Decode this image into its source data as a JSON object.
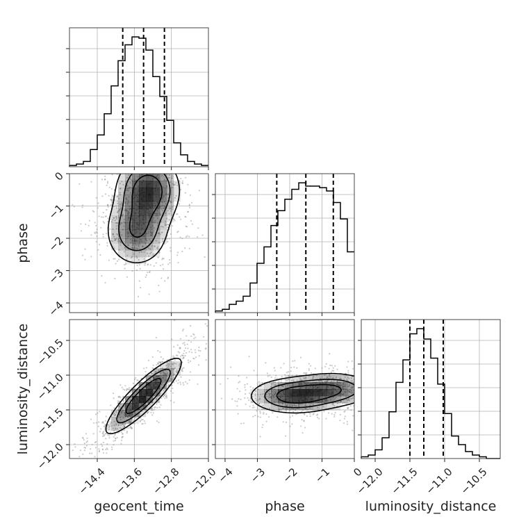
{
  "chart_data": {
    "type": "corner",
    "params": [
      "geocent_time",
      "phase",
      "luminosity_distance"
    ],
    "axis_labels": {
      "geocent_time": "geocent_time",
      "phase": "phase",
      "luminosity_distance": "luminosity_distance"
    },
    "ranges": {
      "geocent_time": [
        -15.0,
        -12.0
      ],
      "phase": [
        -4.3,
        0.0
      ],
      "luminosity_distance": [
        -12.2,
        -10.2
      ]
    },
    "ticks": {
      "geocent_time": {
        "values": [
          -14.4,
          -13.6,
          -12.8,
          -12.0
        ],
        "labels": [
          "−14.4",
          "−13.6",
          "−12.8",
          "−12.0"
        ]
      },
      "phase": {
        "values": [
          -4,
          -3,
          -2,
          -1,
          0
        ],
        "labels": [
          "−4",
          "−3",
          "−2",
          "−1",
          "0"
        ]
      },
      "luminosity_distance": {
        "values": [
          -12.0,
          -11.5,
          -11.0,
          -10.5
        ],
        "labels": [
          "−12.0",
          "−11.5",
          "−11.0",
          "−10.5"
        ]
      }
    },
    "quantiles": {
      "geocent_time": [
        -13.85,
        -13.4,
        -12.95
      ],
      "phase": [
        -2.4,
        -1.5,
        -0.65
      ],
      "luminosity_distance": [
        -11.5,
        -11.3,
        -11.02
      ]
    },
    "histograms": {
      "geocent_time": {
        "edges": [
          -15.0,
          -14.85,
          -14.7,
          -14.55,
          -14.4,
          -14.25,
          -14.1,
          -13.95,
          -13.8,
          -13.65,
          -13.5,
          -13.35,
          -13.2,
          -13.05,
          -12.9,
          -12.75,
          -12.6,
          -12.45,
          -12.3,
          -12.15,
          -12.0
        ],
        "counts": [
          1,
          2,
          4,
          13,
          24,
          40,
          61,
          80,
          92,
          98,
          97,
          88,
          68,
          53,
          35,
          18,
          9,
          4,
          2,
          1
        ]
      },
      "phase": {
        "edges": [
          -4.3,
          -4.085,
          -3.87,
          -3.655,
          -3.44,
          -3.225,
          -3.01,
          -2.795,
          -2.58,
          -2.365,
          -2.15,
          -1.935,
          -1.72,
          -1.505,
          -1.29,
          -1.075,
          -0.86,
          -0.645,
          -0.43,
          -0.215,
          0.0
        ],
        "counts": [
          1,
          2,
          5,
          7,
          10,
          18,
          30,
          40,
          53,
          62,
          69,
          75,
          79,
          77,
          77,
          76,
          74,
          67,
          57,
          37
        ]
      },
      "luminosity_distance": {
        "edges": [
          -12.2,
          -12.1,
          -12.0,
          -11.9,
          -11.8,
          -11.7,
          -11.6,
          -11.5,
          -11.4,
          -11.3,
          -11.2,
          -11.1,
          -11.0,
          -10.9,
          -10.8,
          -10.7,
          -10.6,
          -10.5,
          -10.4,
          -10.3,
          -10.2
        ],
        "counts": [
          1,
          2,
          5,
          12,
          27,
          44,
          57,
          72,
          75,
          69,
          58,
          43,
          26,
          13,
          8,
          4,
          2,
          1,
          0,
          0
        ]
      }
    },
    "joint": [
      {
        "x": "geocent_time",
        "y": "phase",
        "peaks": [
          [
            -13.3,
            -0.5
          ],
          [
            -13.55,
            -1.8
          ]
        ],
        "spread": [
          0.38,
          0.6
        ]
      },
      {
        "x": "geocent_time",
        "y": "luminosity_distance",
        "peaks": [
          [
            -13.4,
            -11.3
          ]
        ],
        "spread": [
          0.45,
          0.3
        ],
        "correlation": 0.88
      },
      {
        "x": "phase",
        "y": "luminosity_distance",
        "peaks": [
          [
            -1.9,
            -11.3
          ],
          [
            -0.6,
            -11.2
          ]
        ],
        "spread": [
          0.75,
          0.14
        ]
      }
    ],
    "grid": true,
    "colors": {
      "line": "#000000",
      "grid": "#b0b0b0",
      "points": "#8a8a8a",
      "fill": "#000000"
    }
  }
}
